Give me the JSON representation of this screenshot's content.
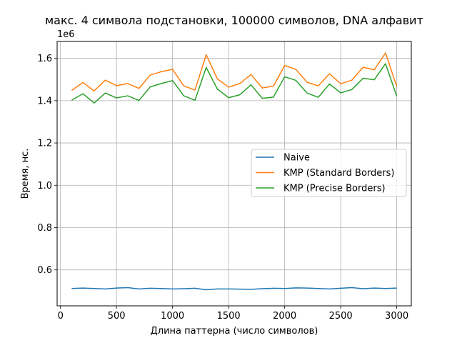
{
  "chart_data": {
    "type": "line",
    "title": "макс. 4 символа подстановки, 100000 символов, DNA алфавит",
    "xlabel": "Длина паттерна (число символов)",
    "ylabel": "Время, нс.",
    "y_offset_label": "1e6",
    "xlim": [
      -30,
      3130
    ],
    "ylim": [
      0.43,
      1.68
    ],
    "x_ticks": [
      0,
      500,
      1000,
      1500,
      2000,
      2500,
      3000
    ],
    "y_ticks": [
      0.6,
      0.8,
      1.0,
      1.2,
      1.4,
      1.6
    ],
    "x_tick_labels": [
      "0",
      "500",
      "1000",
      "1500",
      "2000",
      "2500",
      "3000"
    ],
    "y_tick_labels": [
      "0.6",
      "0.8",
      "1.0",
      "1.2",
      "1.4",
      "1.6"
    ],
    "grid": true,
    "legend_position": "center-right",
    "x": [
      100,
      200,
      300,
      400,
      500,
      600,
      700,
      800,
      900,
      1000,
      1100,
      1200,
      1300,
      1400,
      1500,
      1600,
      1700,
      1800,
      1900,
      2000,
      2100,
      2200,
      2300,
      2400,
      2500,
      2600,
      2700,
      2800,
      2900,
      3000
    ],
    "series": [
      {
        "name": "Naive",
        "color": "#1f77b4",
        "values": [
          0.512,
          0.514,
          0.512,
          0.51,
          0.514,
          0.516,
          0.51,
          0.513,
          0.512,
          0.51,
          0.511,
          0.513,
          0.506,
          0.51,
          0.51,
          0.509,
          0.508,
          0.511,
          0.513,
          0.512,
          0.515,
          0.514,
          0.512,
          0.51,
          0.513,
          0.516,
          0.511,
          0.514,
          0.512,
          0.514
        ]
      },
      {
        "name": "KMP (Standard Borders)",
        "color": "#ff7f0e",
        "values": [
          1.448,
          1.486,
          1.446,
          1.497,
          1.471,
          1.481,
          1.458,
          1.521,
          1.537,
          1.548,
          1.47,
          1.45,
          1.617,
          1.503,
          1.464,
          1.481,
          1.524,
          1.46,
          1.469,
          1.566,
          1.548,
          1.487,
          1.47,
          1.527,
          1.48,
          1.497,
          1.558,
          1.546,
          1.626,
          1.467
        ]
      },
      {
        "name": "KMP (Precise Borders)",
        "color": "#2ca02c",
        "values": [
          1.402,
          1.433,
          1.389,
          1.436,
          1.413,
          1.423,
          1.401,
          1.465,
          1.481,
          1.495,
          1.423,
          1.402,
          1.557,
          1.455,
          1.414,
          1.428,
          1.475,
          1.411,
          1.417,
          1.513,
          1.496,
          1.436,
          1.416,
          1.479,
          1.437,
          1.453,
          1.506,
          1.499,
          1.575,
          1.421
        ]
      }
    ]
  }
}
